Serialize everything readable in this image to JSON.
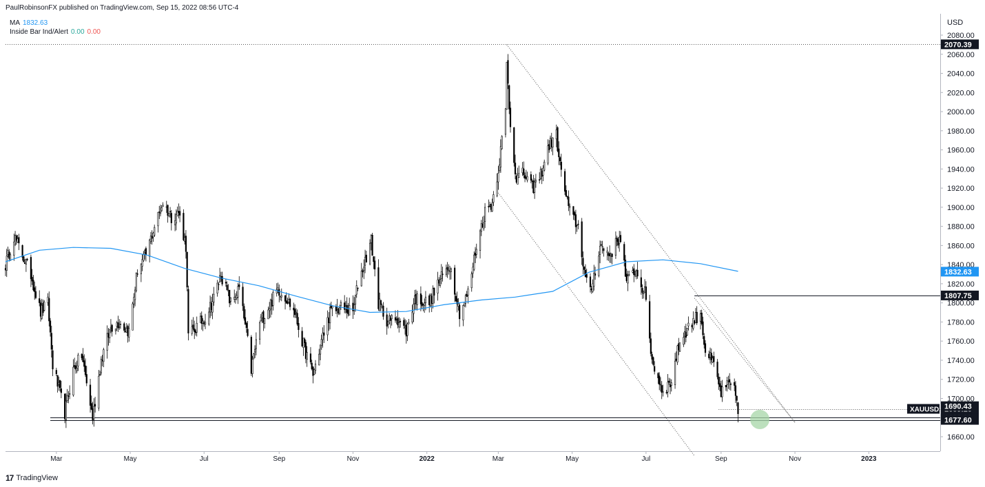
{
  "header": {
    "published_text": "PaulRobinsonFX published on TradingView.com, Sep 15, 2022 08:56 UTC-4"
  },
  "legend": {
    "ma_label": "MA",
    "ma_value": "1832.63",
    "ib_label": "Inside Bar Ind/Alert",
    "ib_value_1": "0.00",
    "ib_value_2": "0.00"
  },
  "footer": {
    "logo_glyph": "17",
    "brand": "TradingView"
  },
  "colors": {
    "up": "#ffffff",
    "down": "#000000",
    "wick": "#000000",
    "ma": "#2196f3",
    "ma_label_bg": "#2196f3",
    "label_bg": "#131722",
    "trendline": "#787b86"
  },
  "chart_data": {
    "type": "candlestick",
    "symbol": "XAUUSD",
    "currency": "USD",
    "ylim": [
      1640,
      2090
    ],
    "x_range": [
      "2021-01-18",
      "2023-03-01"
    ],
    "y_ticks": [
      1660,
      1680,
      1700,
      1720,
      1740,
      1760,
      1780,
      1800,
      1820,
      1840,
      1860,
      1880,
      1900,
      1920,
      1940,
      1960,
      1980,
      2000,
      2020,
      2040,
      2060,
      2080
    ],
    "y_tick_labels": [
      "1660.00",
      "1680.00",
      "1700.00",
      "1720.00",
      "1740.00",
      "1760.00",
      "1780.00",
      "1800.00",
      "1820.00",
      "1840.00",
      "1860.00",
      "1880.00",
      "1900.00",
      "1920.00",
      "1940.00",
      "1960.00",
      "1980.00",
      "2000.00",
      "2020.00",
      "2040.00",
      "2060.00",
      "2080.00"
    ],
    "x_ticks": [
      {
        "label": "Mar",
        "date": "2021-03-01",
        "bold": false
      },
      {
        "label": "May",
        "date": "2021-05-01",
        "bold": false
      },
      {
        "label": "Jul",
        "date": "2021-07-01",
        "bold": false
      },
      {
        "label": "Sep",
        "date": "2021-09-01",
        "bold": false
      },
      {
        "label": "Nov",
        "date": "2021-11-01",
        "bold": false
      },
      {
        "label": "2022",
        "date": "2022-01-01",
        "bold": true
      },
      {
        "label": "Mar",
        "date": "2022-03-01",
        "bold": false
      },
      {
        "label": "May",
        "date": "2022-05-01",
        "bold": false
      },
      {
        "label": "Jul",
        "date": "2022-07-01",
        "bold": false
      },
      {
        "label": "Sep",
        "date": "2022-09-01",
        "bold": false
      },
      {
        "label": "Nov",
        "date": "2022-11-01",
        "bold": false
      },
      {
        "label": "2023",
        "date": "2023-01-01",
        "bold": true
      }
    ],
    "anchors": [
      [
        "2021-01-18",
        1840
      ],
      [
        "2021-01-25",
        1870
      ],
      [
        "2021-02-01",
        1850
      ],
      [
        "2021-02-08",
        1830
      ],
      [
        "2021-02-16",
        1790
      ],
      [
        "2021-02-22",
        1800
      ],
      [
        "2021-02-26",
        1735
      ],
      [
        "2021-03-08",
        1685
      ],
      [
        "2021-03-15",
        1730
      ],
      [
        "2021-03-22",
        1745
      ],
      [
        "2021-03-31",
        1680
      ],
      [
        "2021-04-07",
        1740
      ],
      [
        "2021-04-15",
        1775
      ],
      [
        "2021-04-22",
        1780
      ],
      [
        "2021-04-30",
        1770
      ],
      [
        "2021-05-07",
        1835
      ],
      [
        "2021-05-14",
        1850
      ],
      [
        "2021-05-21",
        1880
      ],
      [
        "2021-05-28",
        1905
      ],
      [
        "2021-06-04",
        1890
      ],
      [
        "2021-06-10",
        1895
      ],
      [
        "2021-06-16",
        1860
      ],
      [
        "2021-06-18",
        1765
      ],
      [
        "2021-06-25",
        1775
      ],
      [
        "2021-07-02",
        1785
      ],
      [
        "2021-07-09",
        1805
      ],
      [
        "2021-07-15",
        1830
      ],
      [
        "2021-07-23",
        1800
      ],
      [
        "2021-07-30",
        1815
      ],
      [
        "2021-08-06",
        1760
      ],
      [
        "2021-08-09",
        1730
      ],
      [
        "2021-08-16",
        1780
      ],
      [
        "2021-08-23",
        1795
      ],
      [
        "2021-08-31",
        1815
      ],
      [
        "2021-09-07",
        1805
      ],
      [
        "2021-09-14",
        1790
      ],
      [
        "2021-09-20",
        1760
      ],
      [
        "2021-09-29",
        1725
      ],
      [
        "2021-10-06",
        1760
      ],
      [
        "2021-10-13",
        1790
      ],
      [
        "2021-10-22",
        1795
      ],
      [
        "2021-11-01",
        1790
      ],
      [
        "2021-11-05",
        1820
      ],
      [
        "2021-11-16",
        1865
      ],
      [
        "2021-11-22",
        1800
      ],
      [
        "2021-11-30",
        1780
      ],
      [
        "2021-12-07",
        1785
      ],
      [
        "2021-12-15",
        1770
      ],
      [
        "2021-12-22",
        1805
      ],
      [
        "2022-01-03",
        1800
      ],
      [
        "2022-01-10",
        1820
      ],
      [
        "2022-01-20",
        1840
      ],
      [
        "2022-01-28",
        1790
      ],
      [
        "2022-02-04",
        1810
      ],
      [
        "2022-02-11",
        1860
      ],
      [
        "2022-02-18",
        1895
      ],
      [
        "2022-02-24",
        1905
      ],
      [
        "2022-03-01",
        1940
      ],
      [
        "2022-03-07",
        2000
      ],
      [
        "2022-03-08",
        2050
      ],
      [
        "2022-03-11",
        1985
      ],
      [
        "2022-03-16",
        1930
      ],
      [
        "2022-03-22",
        1935
      ],
      [
        "2022-03-29",
        1920
      ],
      [
        "2022-04-04",
        1930
      ],
      [
        "2022-04-12",
        1965
      ],
      [
        "2022-04-18",
        1975
      ],
      [
        "2022-04-22",
        1935
      ],
      [
        "2022-04-29",
        1895
      ],
      [
        "2022-05-06",
        1880
      ],
      [
        "2022-05-12",
        1825
      ],
      [
        "2022-05-16",
        1810
      ],
      [
        "2022-05-24",
        1860
      ],
      [
        "2022-06-01",
        1850
      ],
      [
        "2022-06-10",
        1870
      ],
      [
        "2022-06-15",
        1820
      ],
      [
        "2022-06-22",
        1835
      ],
      [
        "2022-06-30",
        1810
      ],
      [
        "2022-07-06",
        1740
      ],
      [
        "2022-07-14",
        1710
      ],
      [
        "2022-07-21",
        1715
      ],
      [
        "2022-07-29",
        1760
      ],
      [
        "2022-08-05",
        1775
      ],
      [
        "2022-08-15",
        1790
      ],
      [
        "2022-08-19",
        1750
      ],
      [
        "2022-08-26",
        1735
      ],
      [
        "2022-09-01",
        1705
      ],
      [
        "2022-09-08",
        1715
      ],
      [
        "2022-09-13",
        1705
      ],
      [
        "2022-09-15",
        1690
      ]
    ],
    "moving_average": {
      "name": "MA",
      "points": [
        [
          "2021-01-18",
          1843
        ],
        [
          "2021-02-15",
          1855
        ],
        [
          "2021-03-15",
          1858
        ],
        [
          "2021-04-15",
          1857
        ],
        [
          "2021-05-15",
          1850
        ],
        [
          "2021-06-15",
          1836
        ],
        [
          "2021-07-15",
          1826
        ],
        [
          "2021-08-15",
          1818
        ],
        [
          "2021-09-15",
          1807
        ],
        [
          "2021-10-15",
          1797
        ],
        [
          "2021-11-15",
          1790
        ],
        [
          "2021-12-15",
          1791
        ],
        [
          "2022-01-15",
          1798
        ],
        [
          "2022-02-15",
          1803
        ],
        [
          "2022-03-15",
          1806
        ],
        [
          "2022-04-15",
          1812
        ],
        [
          "2022-05-15",
          1832
        ],
        [
          "2022-06-15",
          1843
        ],
        [
          "2022-07-15",
          1845
        ],
        [
          "2022-08-15",
          1841
        ],
        [
          "2022-09-15",
          1833
        ]
      ]
    },
    "horizontal_lines": [
      {
        "value": 2070.39,
        "label": "2070.39",
        "style": "dotted",
        "from": "2021-01-18"
      },
      {
        "value": 1807.75,
        "label": "1807.75",
        "style": "solid",
        "from": "2022-08-10"
      },
      {
        "value": 1680.0,
        "label": "1680.00",
        "style": "solid",
        "from": "2021-02-24"
      },
      {
        "value": 1677.6,
        "label": "1677.60",
        "style": "solid",
        "from": "2021-02-24"
      },
      {
        "value": 1689.16,
        "label": "1689.16",
        "style": "dotted",
        "from": "2022-08-30"
      }
    ],
    "price_labels": [
      {
        "value": 1832.63,
        "label": "1832.63",
        "kind": "ma"
      },
      {
        "value": 1690.43,
        "label": "1690.43",
        "kind": "dark"
      },
      {
        "value": 1689.16,
        "label": "1689.16",
        "kind": "symbol",
        "symbol_label": "XAUUSD"
      }
    ],
    "trendlines": [
      {
        "from": [
          "2022-03-08",
          2070
        ],
        "to": [
          "2022-11-01",
          1675
        ]
      },
      {
        "from": [
          "2022-03-01",
          1915
        ],
        "to": [
          "2022-08-10",
          1640
        ]
      },
      {
        "from": [
          "2022-08-10",
          1805
        ],
        "to": [
          "2022-11-01",
          1675
        ]
      }
    ],
    "marker": {
      "date": "2022-10-03",
      "value": 1678,
      "color": "#a5d6a7"
    }
  }
}
